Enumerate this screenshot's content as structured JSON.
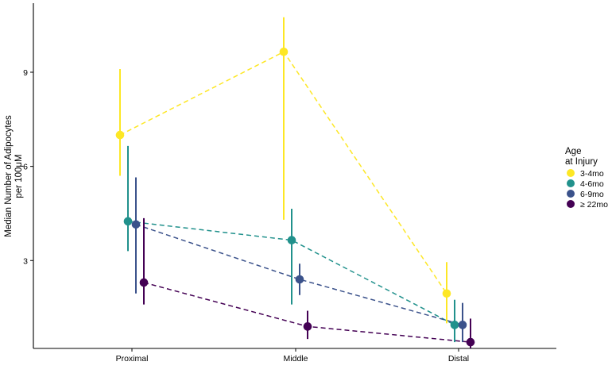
{
  "chart_data": {
    "type": "scatter",
    "title": "",
    "xlabel": "",
    "ylabel_lines": [
      "Median Number of Adipocytes",
      "per 100μM"
    ],
    "categories": [
      "Proximal",
      "Middle",
      "Distal"
    ],
    "y_ticks": [
      {
        "value": 3,
        "label": "3"
      },
      {
        "value": 6,
        "label": "6"
      },
      {
        "value": 9,
        "label": "9"
      }
    ],
    "ylim": [
      0.2,
      11.2
    ],
    "grid": false,
    "legend": {
      "title_lines": [
        "Age",
        "at Injury"
      ],
      "placement": "right"
    },
    "series": [
      {
        "name": "3-4mo",
        "color": "#fde725",
        "slot": 0,
        "values": [
          7.0,
          9.65,
          1.95
        ],
        "lower": [
          5.7,
          4.3,
          1.0
        ],
        "upper": [
          9.1,
          10.75,
          2.95
        ]
      },
      {
        "name": "4-6mo",
        "color": "#21918c",
        "slot": 1,
        "values": [
          4.25,
          3.65,
          0.95
        ],
        "lower": [
          3.3,
          1.6,
          0.4
        ],
        "upper": [
          6.65,
          4.65,
          1.75
        ]
      },
      {
        "name": "6-9mo",
        "color": "#3b528b",
        "slot": 2,
        "values": [
          4.15,
          2.4,
          0.95
        ],
        "lower": [
          1.95,
          1.9,
          0.4
        ],
        "upper": [
          5.65,
          2.9,
          1.65
        ]
      },
      {
        "name": "≥ 22mo",
        "color": "#440154",
        "slot": 3,
        "values": [
          2.3,
          0.9,
          0.4
        ],
        "lower": [
          1.6,
          0.5,
          0.2
        ],
        "upper": [
          4.35,
          1.4,
          1.15
        ]
      }
    ]
  }
}
